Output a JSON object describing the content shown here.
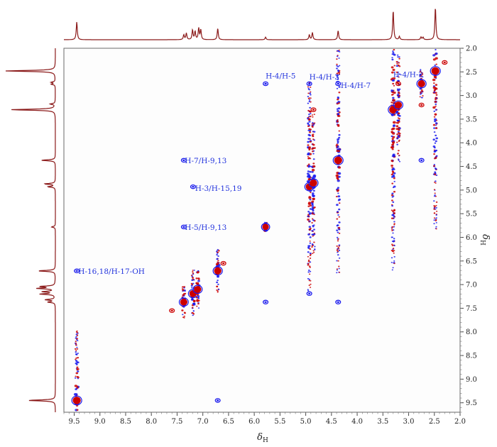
{
  "chart_data": {
    "type": "scatter",
    "title": "",
    "x_axis": {
      "label": "δH",
      "label_main": "δ",
      "label_sub": "H",
      "range": [
        9.7,
        2.0
      ],
      "reversed": true,
      "ticks": [
        "9.5",
        "9.0",
        "8.5",
        "8.0",
        "7.5",
        "7.0",
        "6.5",
        "6.0",
        "5.5",
        "5.0",
        "4.5",
        "4.0",
        "3.5",
        "3.0",
        "2.5",
        "2.0"
      ]
    },
    "y_axis": {
      "label": "δH",
      "label_main": "δ",
      "label_sub": "H",
      "range": [
        2.0,
        9.7
      ],
      "reversed": true,
      "position": "right",
      "ticks": [
        "2.0",
        "2.5",
        "3.0",
        "3.5",
        "4.0",
        "4.5",
        "5.0",
        "5.5",
        "6.0",
        "6.5",
        "7.0",
        "7.5",
        "8.0",
        "8.5",
        "9.0",
        "9.5"
      ]
    },
    "grid": false,
    "colors": {
      "positive": "#cc0000",
      "negative": "#1a1aee",
      "projection": "#8b1a1a"
    },
    "diagonal_peaks": [
      {
        "shift": 9.45,
        "strength": 1.0,
        "extent": 1.5
      },
      {
        "shift": 7.37,
        "strength": 0.8,
        "extent": 0.35
      },
      {
        "shift": 7.19,
        "strength": 0.85,
        "extent": 0.5
      },
      {
        "shift": 7.1,
        "strength": 0.8,
        "extent": 0.4
      },
      {
        "shift": 6.71,
        "strength": 0.85,
        "extent": 0.45
      },
      {
        "shift": 5.78,
        "strength": 0.6,
        "extent": 0.1
      },
      {
        "shift": 4.93,
        "strength": 0.8,
        "extent": 2.2
      },
      {
        "shift": 4.85,
        "strength": 0.85,
        "extent": 1.5
      },
      {
        "shift": 4.37,
        "strength": 1.0,
        "extent": 2.4
      },
      {
        "shift": 3.3,
        "strength": 1.0,
        "extent": 3.4
      },
      {
        "shift": 3.2,
        "strength": 0.8,
        "extent": 1.2
      },
      {
        "shift": 2.75,
        "strength": 0.85,
        "extent": 0.3
      },
      {
        "shift": 2.48,
        "strength": 1.0,
        "extent": 3.4
      }
    ],
    "cross_peaks": [
      {
        "x": 5.78,
        "y": 2.75,
        "sign": "negative"
      },
      {
        "x": 4.93,
        "y": 2.75,
        "sign": "negative"
      },
      {
        "x": 4.37,
        "y": 2.75,
        "sign": "negative"
      },
      {
        "x": 3.2,
        "y": 2.75,
        "sign": "positive"
      },
      {
        "x": 7.37,
        "y": 4.37,
        "sign": "negative"
      },
      {
        "x": 7.19,
        "y": 4.93,
        "sign": "negative"
      },
      {
        "x": 7.37,
        "y": 5.78,
        "sign": "negative"
      },
      {
        "x": 9.45,
        "y": 6.71,
        "sign": "negative"
      },
      {
        "x": 6.71,
        "y": 9.45,
        "sign": "negative"
      },
      {
        "x": 2.75,
        "y": 4.37,
        "sign": "negative"
      },
      {
        "x": 2.75,
        "y": 3.2,
        "sign": "positive"
      },
      {
        "x": 3.2,
        "y": 3.2,
        "sign": "positive"
      },
      {
        "x": 4.93,
        "y": 7.19,
        "sign": "negative"
      },
      {
        "x": 4.37,
        "y": 7.37,
        "sign": "negative"
      },
      {
        "x": 5.78,
        "y": 7.37,
        "sign": "negative"
      },
      {
        "x": 4.85,
        "y": 3.3,
        "sign": "positive"
      },
      {
        "x": 6.6,
        "y": 6.55,
        "sign": "positive"
      },
      {
        "x": 2.3,
        "y": 2.3,
        "sign": "positive"
      },
      {
        "x": 7.6,
        "y": 7.55,
        "sign": "positive"
      }
    ],
    "annotations": [
      {
        "text": "H-4/H-5",
        "x": 5.78,
        "y": 2.58
      },
      {
        "text": "H-4/H-3",
        "x": 4.93,
        "y": 2.6
      },
      {
        "text": "H-4/H-7",
        "x": 4.32,
        "y": 2.78
      },
      {
        "text": "H-4/H-2",
        "x": 3.3,
        "y": 2.55
      },
      {
        "text": "H-7/H-9,13",
        "x": 7.35,
        "y": 4.37
      },
      {
        "text": "H-3/H-15,19",
        "x": 7.15,
        "y": 4.96
      },
      {
        "text": "H-5/H-9,13",
        "x": 7.35,
        "y": 5.78
      },
      {
        "text": "H-16,18/H-17-OH",
        "x": 9.42,
        "y": 6.71
      }
    ],
    "projection_peaks": [
      {
        "shift": 9.45,
        "height": 0.55
      },
      {
        "shift": 7.37,
        "height": 0.15
      },
      {
        "shift": 7.32,
        "height": 0.2
      },
      {
        "shift": 7.2,
        "height": 0.3
      },
      {
        "shift": 7.15,
        "height": 0.25
      },
      {
        "shift": 7.08,
        "height": 0.35
      },
      {
        "shift": 7.04,
        "height": 0.3
      },
      {
        "shift": 6.71,
        "height": 0.35
      },
      {
        "shift": 5.78,
        "height": 0.08
      },
      {
        "shift": 4.93,
        "height": 0.15
      },
      {
        "shift": 4.87,
        "height": 0.22
      },
      {
        "shift": 4.37,
        "height": 0.28
      },
      {
        "shift": 3.3,
        "height": 0.9
      },
      {
        "shift": 3.18,
        "height": 0.1
      },
      {
        "shift": 2.76,
        "height": 0.08
      },
      {
        "shift": 2.72,
        "height": 0.08
      },
      {
        "shift": 2.48,
        "height": 1.0
      }
    ]
  }
}
